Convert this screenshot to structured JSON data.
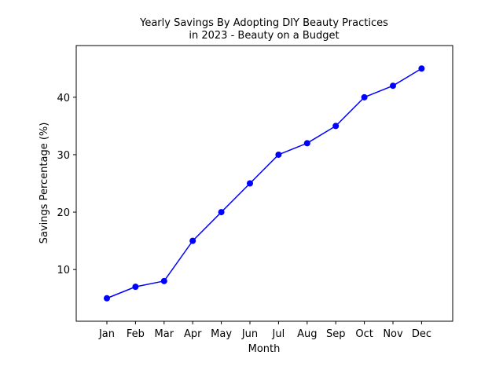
{
  "chart_data": {
    "type": "line",
    "title_lines": [
      "Yearly Savings By Adopting DIY Beauty Practices",
      "in 2023 - Beauty on a Budget"
    ],
    "xlabel": "Month",
    "ylabel": "Savings Percentage (%)",
    "categories": [
      "Jan",
      "Feb",
      "Mar",
      "Apr",
      "May",
      "Jun",
      "Jul",
      "Aug",
      "Sep",
      "Oct",
      "Nov",
      "Dec"
    ],
    "series": [
      {
        "values": [
          5,
          7,
          8,
          15,
          20,
          25,
          30,
          32,
          35,
          40,
          42,
          45
        ],
        "color": "#0000ff",
        "marker": "circle"
      }
    ],
    "ylim": [
      1,
      49
    ],
    "yticks": [
      10,
      20,
      30,
      40
    ],
    "grid": false,
    "legend": "none"
  }
}
